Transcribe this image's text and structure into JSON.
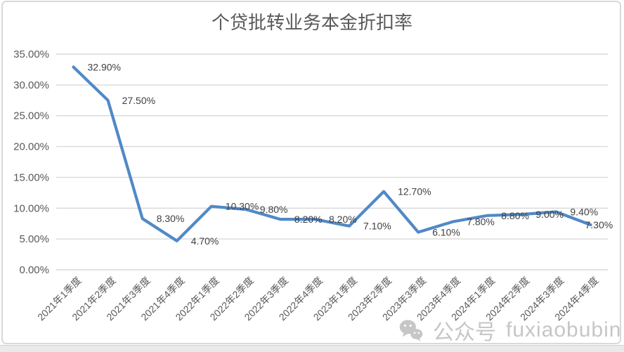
{
  "chart_data": {
    "type": "line",
    "title": "个贷批转业务本金折扣率",
    "categories": [
      "2021年1季度",
      "2021年2季度",
      "2021年3季度",
      "2021年4季度",
      "2022年1季度",
      "2022年2季度",
      "2022年3季度",
      "2022年4季度",
      "2023年1季度",
      "2023年2季度",
      "2023年3季度",
      "2023年4季度",
      "2024年1季度",
      "2024年2季度",
      "2024年3季度",
      "2024年4季度"
    ],
    "values": [
      32.9,
      27.5,
      8.3,
      4.7,
      10.3,
      9.8,
      8.2,
      8.2,
      7.1,
      12.7,
      6.1,
      7.8,
      8.8,
      9.0,
      9.4,
      7.3
    ],
    "data_labels": [
      "32.90%",
      "27.50%",
      "8.30%",
      "4.70%",
      "10.30%",
      "9.80%",
      "8.20%",
      "8.20%",
      "7.10%",
      "12.70%",
      "6.10%",
      "7.80%",
      "8.80%",
      "9.00%",
      "9.40%",
      "7.30%"
    ],
    "y_ticks": [
      "0.00%",
      "5.00%",
      "10.00%",
      "15.00%",
      "20.00%",
      "25.00%",
      "30.00%",
      "35.00%"
    ],
    "ylim": [
      0,
      35
    ],
    "grid": true,
    "legend": "none",
    "xlabel": "",
    "ylabel": "",
    "colors": {
      "line": "#5189c7",
      "grid": "#d9d9d9",
      "axis_text": "#595959",
      "data_label": "#3f3f3f",
      "title": "#595959",
      "watermark": "#c6c6c6"
    }
  },
  "watermark": {
    "icon": "wechat-icon",
    "prefix": "公众号",
    "name": "fuxiaobubin"
  }
}
